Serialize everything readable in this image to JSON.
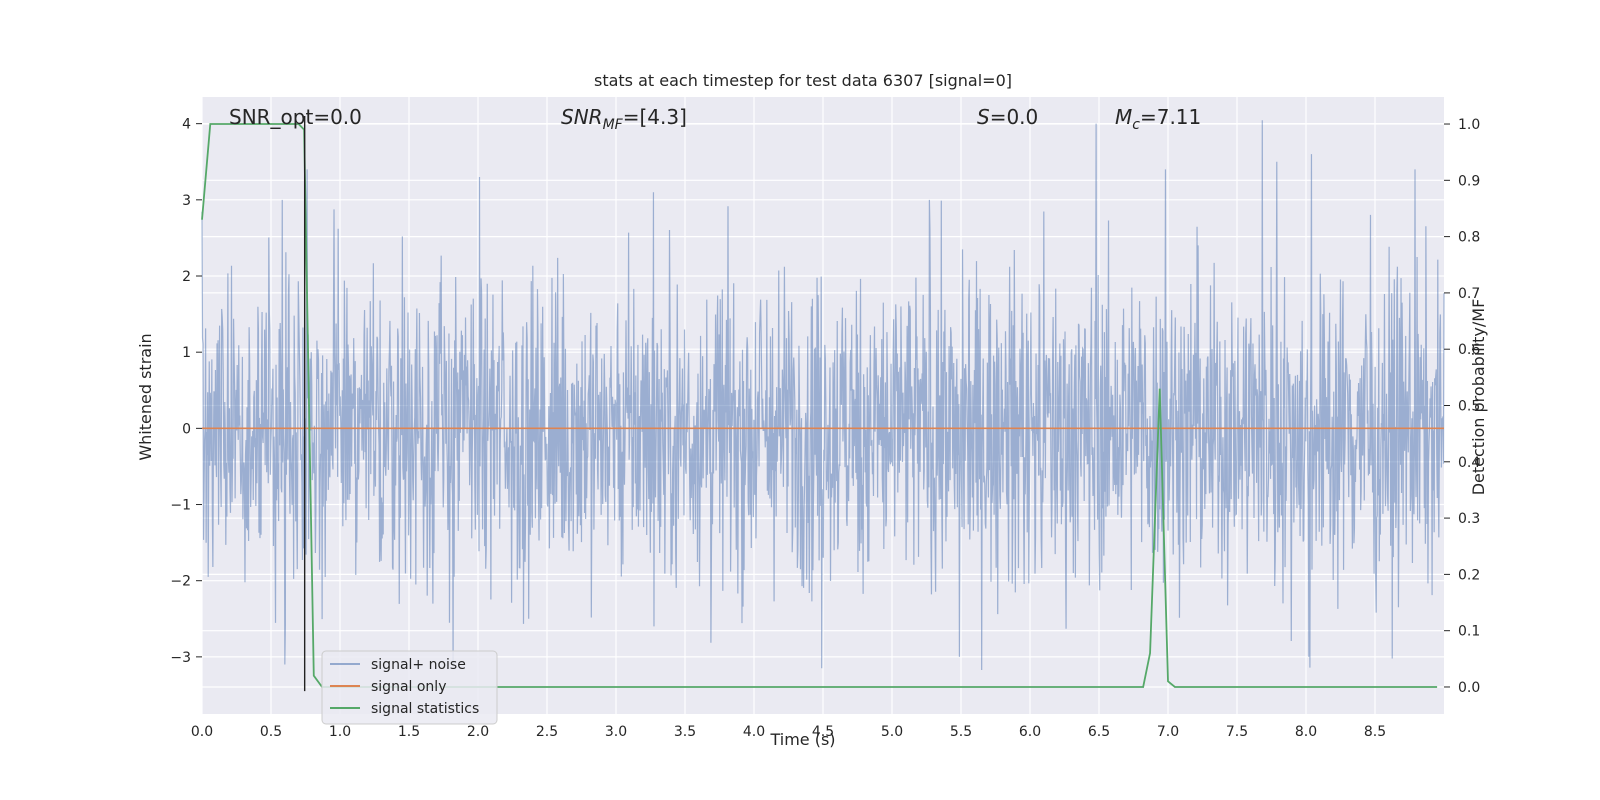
{
  "chart_data": {
    "type": "line",
    "title": "stats at each timestep for test data 6307 [signal=0]",
    "xlabel": "Time (s)",
    "ylabel": "Whitened strain",
    "y2label": "Detection probability/MF",
    "xlim": [
      0.0,
      9.0
    ],
    "ylim": [
      -3.75,
      4.35
    ],
    "y2lim": [
      -0.048,
      1.048
    ],
    "xticks": [
      "0.0",
      "0.5",
      "1.0",
      "1.5",
      "2.0",
      "2.5",
      "3.0",
      "3.5",
      "4.0",
      "4.5",
      "5.0",
      "5.5",
      "6.0",
      "6.5",
      "7.0",
      "7.5",
      "8.0",
      "8.5"
    ],
    "yticks": [
      "4",
      "3",
      "2",
      "1",
      "0",
      "−1",
      "−2",
      "−3"
    ],
    "y2ticks": [
      "1.0",
      "0.9",
      "0.8",
      "0.7",
      "0.6",
      "0.5",
      "0.4",
      "0.3",
      "0.2",
      "0.1",
      "0.0"
    ],
    "grid": true,
    "legend": {
      "position": "lower-left",
      "entries": [
        "signal+ noise",
        "signal only",
        "signal statistics"
      ]
    },
    "annotations": {
      "snr_opt": "SNR_opt=0.0",
      "snr_mf_main": "SNR",
      "snr_mf_sub": "MF",
      "snr_mf_val": "=[4.3]",
      "s_main": "S",
      "s_val": "=0.0",
      "mc_main": "M",
      "mc_sub": "c",
      "mc_val": "=7.11"
    },
    "series": [
      {
        "name": "signal+ noise",
        "axis": "left",
        "color": "#4c72b0",
        "alpha": 0.5,
        "description_values": "whitened noise, typical amplitude about ±1.8, peaks up to about 4.0 and down to about -3.2",
        "x_range": [
          0.0,
          9.0
        ],
        "envelope": 1.8,
        "spikes": [
          {
            "x": 0.58,
            "y": 3.0
          },
          {
            "x": 0.76,
            "y": 3.4
          },
          {
            "x": 2.01,
            "y": 3.3
          },
          {
            "x": 3.27,
            "y": 3.1
          },
          {
            "x": 5.27,
            "y": 3.0
          },
          {
            "x": 6.48,
            "y": 4.0
          },
          {
            "x": 6.98,
            "y": 3.4
          },
          {
            "x": 7.79,
            "y": 3.5
          },
          {
            "x": 8.04,
            "y": 3.6
          },
          {
            "x": 8.79,
            "y": 3.4
          },
          {
            "x": 0.6,
            "y": -3.1
          },
          {
            "x": 1.82,
            "y": -3.1
          },
          {
            "x": 4.49,
            "y": -3.15
          },
          {
            "x": 5.49,
            "y": -3.0
          },
          {
            "x": 8.02,
            "y": -3.0
          }
        ]
      },
      {
        "name": "signal only",
        "axis": "left",
        "color": "#dd8452",
        "x": [
          0.0,
          9.0
        ],
        "y": [
          0.0,
          0.0
        ]
      },
      {
        "name": "signal statistics",
        "axis": "right",
        "color": "#55a868",
        "x": [
          0.0,
          0.06,
          0.1,
          0.2,
          0.7,
          0.74,
          0.81,
          0.87,
          1.0,
          6.82,
          6.87,
          6.94,
          7.0,
          7.05,
          7.1,
          8.95
        ],
        "y": [
          0.83,
          1.0,
          1.0,
          1.0,
          1.0,
          0.99,
          0.02,
          0.0,
          0.0,
          0.0,
          0.06,
          0.53,
          0.01,
          0.0,
          0.0,
          0.0
        ]
      }
    ],
    "vline": {
      "x": 0.744,
      "y_from": -3.45,
      "y_to": 4.1,
      "color": "#222222"
    }
  }
}
